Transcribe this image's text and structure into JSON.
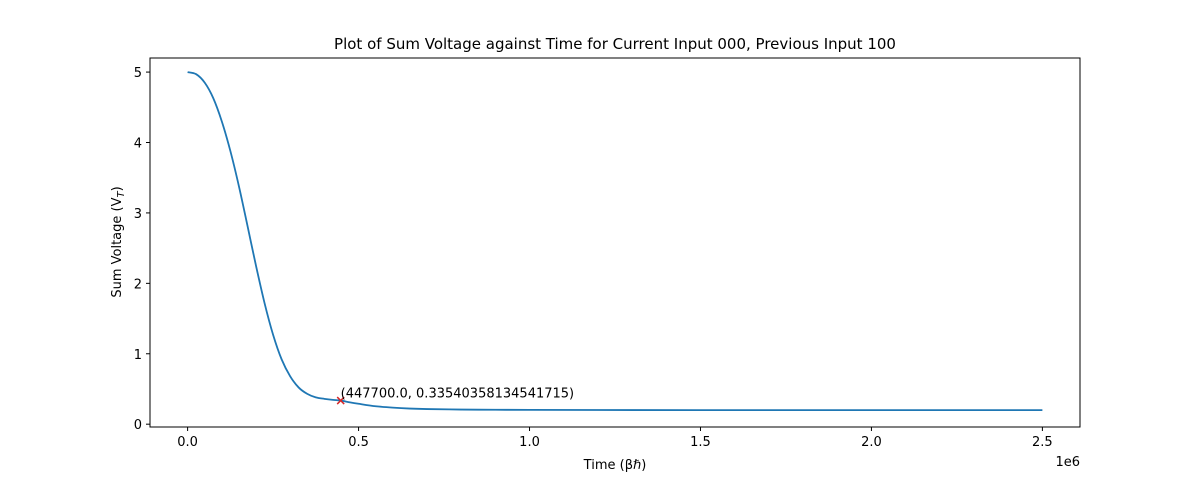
{
  "chart_data": {
    "type": "line",
    "title": "Plot of Sum Voltage against Time for Current Input 000, Previous Input 100",
    "xlabel": "Time (βℏ)",
    "ylabel": "Sum Voltage (V",
    "ylabel_sub": "T",
    "ylabel_close": ")",
    "x_offset_label": "1e6",
    "xlim": [
      -110000,
      2610000
    ],
    "ylim": [
      -0.04,
      5.2
    ],
    "xticks": [
      0,
      500000,
      1000000,
      1500000,
      2000000,
      2500000
    ],
    "xtick_labels": [
      "0.0",
      "0.5",
      "1.0",
      "1.5",
      "2.0",
      "2.5"
    ],
    "yticks": [
      0,
      1,
      2,
      3,
      4,
      5
    ],
    "ytick_labels": [
      "0",
      "1",
      "2",
      "3",
      "4",
      "5"
    ],
    "grid": false,
    "series": [
      {
        "color": "#1f77b4",
        "x": [
          0,
          25000,
          50000,
          75000,
          100000,
          125000,
          150000,
          175000,
          200000,
          225000,
          250000,
          275000,
          300000,
          325000,
          350000,
          375000,
          400000,
          425000,
          447700,
          475000,
          500000,
          550000,
          600000,
          650000,
          700000,
          800000,
          900000,
          1000000,
          1200000,
          1500000,
          2000000,
          2500000
        ],
        "y": [
          5.0,
          4.97,
          4.85,
          4.63,
          4.3,
          3.88,
          3.38,
          2.82,
          2.25,
          1.72,
          1.27,
          0.92,
          0.68,
          0.52,
          0.43,
          0.38,
          0.36,
          0.345,
          0.3354,
          0.31,
          0.29,
          0.255,
          0.235,
          0.222,
          0.215,
          0.208,
          0.205,
          0.203,
          0.201,
          0.2,
          0.2,
          0.2
        ]
      }
    ],
    "annotations": [
      {
        "x": 447700,
        "y": 0.33540358134541715,
        "text": "(447700.0, 0.33540358134541715)",
        "marker": "x",
        "marker_color": "#d62728"
      }
    ]
  }
}
